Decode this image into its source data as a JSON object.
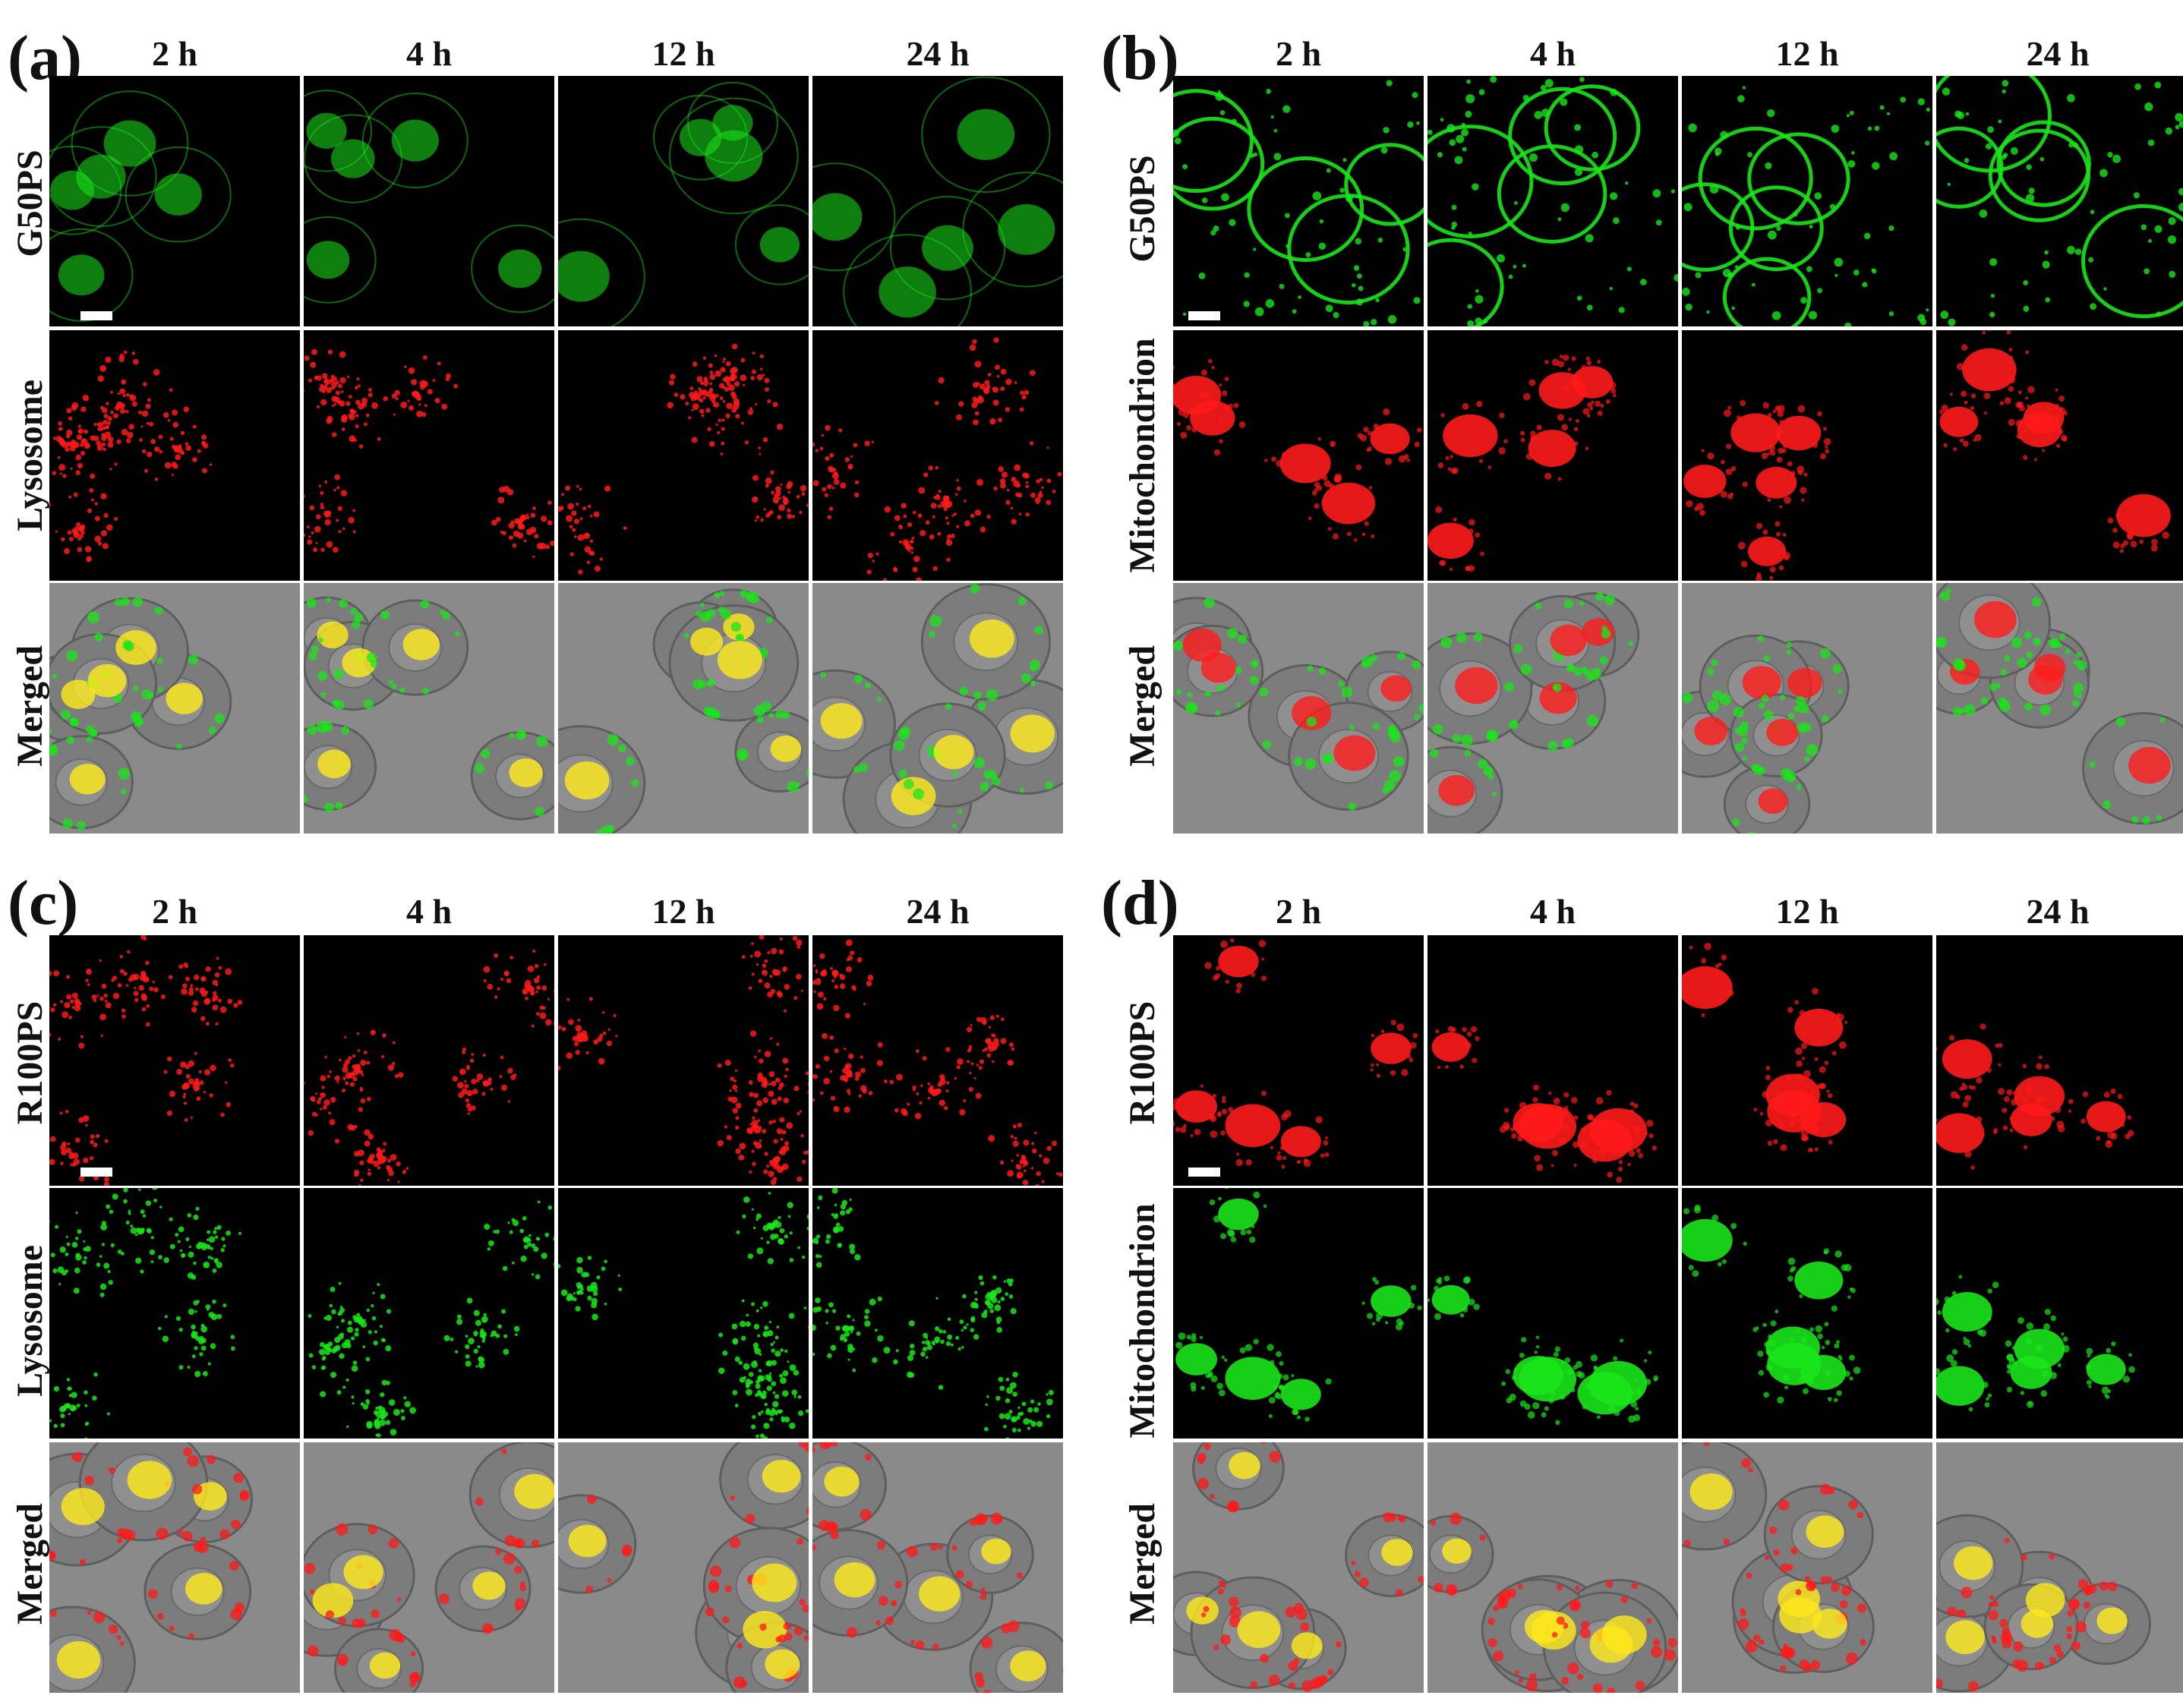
{
  "colors": {
    "green": "#19e619",
    "red": "#ff1a1a",
    "yellow": "#ffe81a",
    "black": "#000000",
    "brightfield": "#8a8a8a"
  },
  "panels": [
    {
      "label": "(a)",
      "columns": [
        "2 h",
        "4 h",
        "12 h",
        "24 h"
      ],
      "rows": [
        {
          "label": "G50PS",
          "channel": "green",
          "pattern": "diffuse"
        },
        {
          "label": "Lysosome",
          "channel": "red",
          "pattern": "punctate"
        },
        {
          "label": "Merged",
          "channel": "merge",
          "pattern": "merge"
        }
      ]
    },
    {
      "label": "(b)",
      "columns": [
        "2 h",
        "4 h",
        "12 h",
        "24 h"
      ],
      "rows": [
        {
          "label": "G50PS",
          "channel": "green",
          "pattern": "membrane"
        },
        {
          "label": "Mitochondrion",
          "channel": "red",
          "pattern": "clustered"
        },
        {
          "label": "Merged",
          "channel": "merge",
          "pattern": "merge"
        }
      ]
    },
    {
      "label": "(c)",
      "columns": [
        "2 h",
        "4 h",
        "12 h",
        "24 h"
      ],
      "rows": [
        {
          "label": "R100PS",
          "channel": "red",
          "pattern": "punctate"
        },
        {
          "label": "Lysosome",
          "channel": "green",
          "pattern": "punctate"
        },
        {
          "label": "Merged",
          "channel": "merge",
          "pattern": "merge"
        }
      ]
    },
    {
      "label": "(d)",
      "columns": [
        "2 h",
        "4 h",
        "12 h",
        "24 h"
      ],
      "rows": [
        {
          "label": "R100PS",
          "channel": "red",
          "pattern": "clustered"
        },
        {
          "label": "Mitochondrion",
          "channel": "green",
          "pattern": "clustered"
        },
        {
          "label": "Merged",
          "channel": "merge",
          "pattern": "merge"
        }
      ]
    }
  ]
}
